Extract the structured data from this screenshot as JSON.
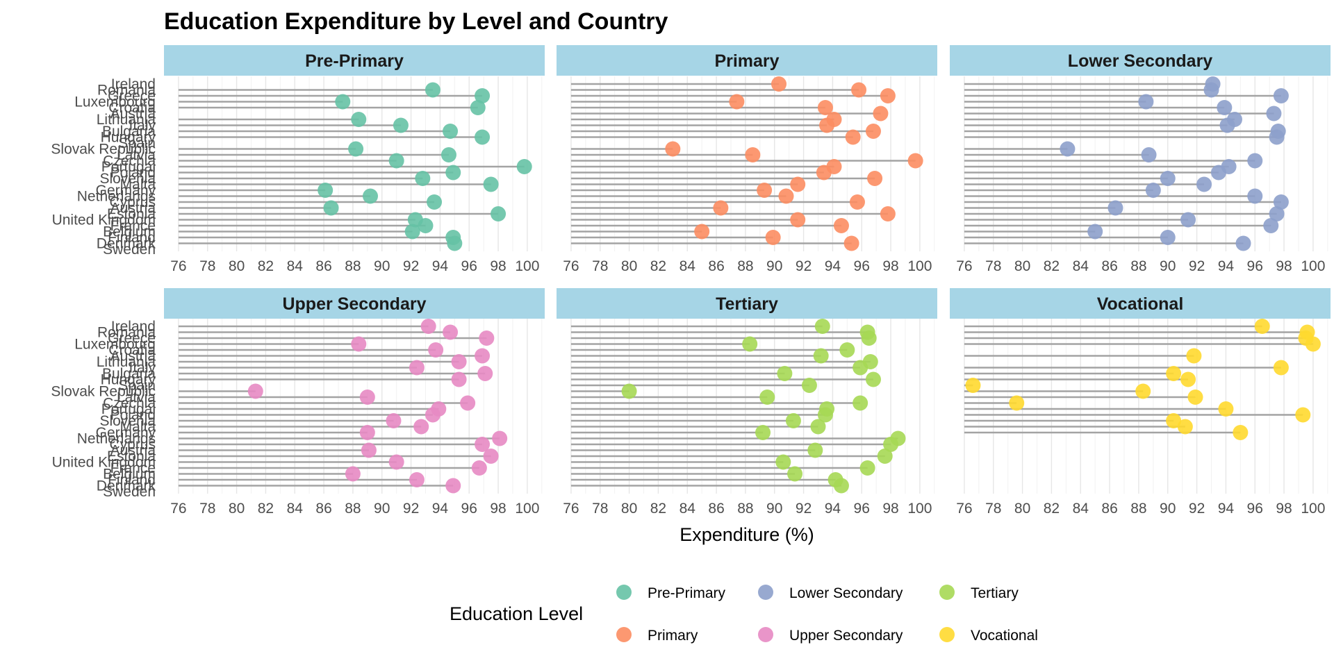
{
  "chart_data": {
    "type": "scatter",
    "title": "Education Expenditure by Level and Country",
    "xlabel": "Expenditure (%)",
    "ylabel": "",
    "xlim": [
      75,
      101.2
    ],
    "x_ticks": [
      76,
      78,
      80,
      82,
      84,
      86,
      88,
      90,
      92,
      94,
      96,
      98,
      100
    ],
    "grid": true,
    "legend_title": "Education Level",
    "legend_position": "bottom",
    "facet_layout": "2x3",
    "countries": [
      "Ireland",
      "Romania",
      "Greece",
      "Luxembourg",
      "Croatia",
      "Austria",
      "Lithuania",
      "Italy",
      "Bulgaria",
      "Hungary",
      "Spain",
      "Slovak Republic",
      "Latvia",
      "Czechia",
      "Portugal",
      "Poland",
      "Slovenia",
      "Malta",
      "Germany",
      "Netherlands",
      "Cyprus",
      "Austria",
      "Estonia",
      "United Kingdom",
      "France",
      "Belgium",
      "Finland",
      "Denmark",
      "Sweden"
    ],
    "series": [
      {
        "name": "Pre-Primary",
        "color": "#66C2A5",
        "values": [
          null,
          93.5,
          96.9,
          87.3,
          96.6,
          null,
          88.4,
          91.3,
          94.7,
          96.9,
          null,
          88.2,
          94.6,
          91.0,
          99.8,
          94.9,
          92.8,
          97.5,
          86.1,
          89.2,
          93.6,
          86.5,
          98.0,
          92.3,
          93.0,
          92.1,
          94.9,
          95.0,
          null
        ]
      },
      {
        "name": "Primary",
        "color": "#FC8D62",
        "values": [
          90.3,
          95.8,
          97.8,
          87.4,
          93.5,
          97.3,
          94.1,
          93.6,
          96.8,
          95.4,
          null,
          83.0,
          88.5,
          99.7,
          94.1,
          93.4,
          96.9,
          91.6,
          89.3,
          90.8,
          95.7,
          86.3,
          97.8,
          91.6,
          94.6,
          85.0,
          89.9,
          95.3,
          null
        ]
      },
      {
        "name": "Lower Secondary",
        "color": "#8DA0CB",
        "values": [
          93.1,
          93.0,
          97.8,
          88.5,
          93.9,
          97.3,
          94.6,
          94.1,
          97.6,
          97.5,
          null,
          83.1,
          88.7,
          96.0,
          94.2,
          93.5,
          90.0,
          92.5,
          89.0,
          96.0,
          97.8,
          86.4,
          97.5,
          91.4,
          97.1,
          85.0,
          90.0,
          95.2,
          null
        ]
      },
      {
        "name": "Upper Secondary",
        "color": "#E78AC3",
        "values": [
          93.2,
          94.7,
          97.2,
          88.4,
          93.7,
          96.9,
          95.3,
          92.4,
          97.1,
          95.3,
          null,
          81.3,
          89.0,
          95.9,
          93.9,
          93.5,
          90.8,
          92.7,
          89.0,
          98.1,
          96.9,
          89.1,
          97.5,
          91.0,
          96.7,
          88.0,
          92.4,
          94.9,
          null
        ]
      },
      {
        "name": "Tertiary",
        "color": "#A6D854",
        "values": [
          93.3,
          96.4,
          96.5,
          88.3,
          95.0,
          93.2,
          96.6,
          95.9,
          90.7,
          96.8,
          92.4,
          80.0,
          89.5,
          95.9,
          93.6,
          93.5,
          91.3,
          93.0,
          89.2,
          98.5,
          98.0,
          92.8,
          97.6,
          90.6,
          96.4,
          91.4,
          94.2,
          94.6,
          null
        ]
      },
      {
        "name": "Vocational",
        "color": "#FFD92F",
        "values": [
          96.5,
          99.6,
          99.5,
          100.0,
          null,
          91.8,
          null,
          97.8,
          90.4,
          91.4,
          76.6,
          88.3,
          91.9,
          79.6,
          94.0,
          99.3,
          90.4,
          91.2,
          95.0,
          null,
          null,
          null,
          null,
          null,
          null,
          null,
          null,
          null,
          null
        ]
      }
    ]
  }
}
